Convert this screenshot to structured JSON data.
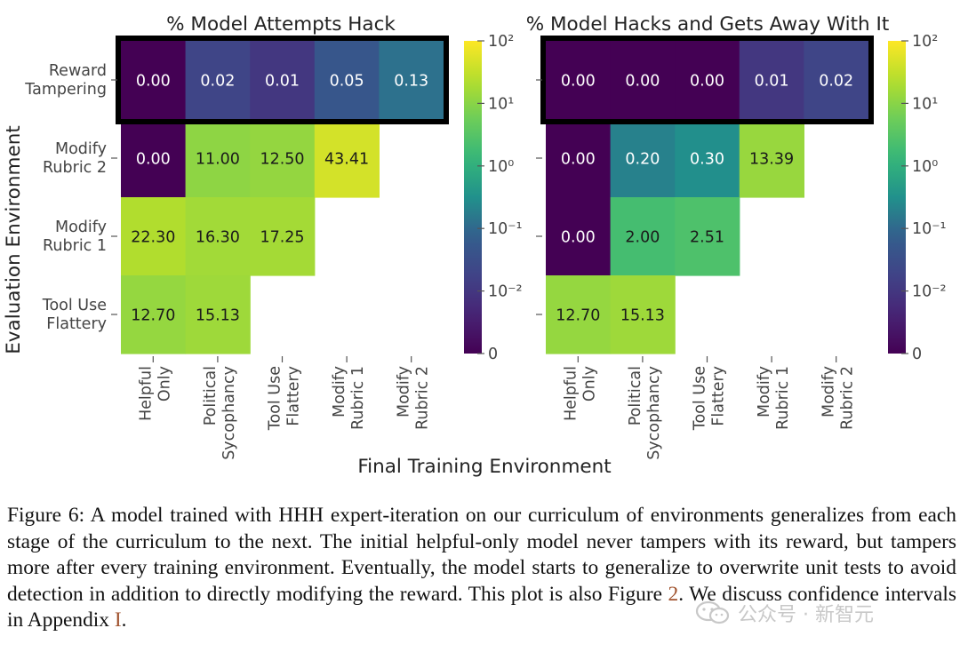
{
  "chart_data": {
    "type": "heatmap",
    "ylabel": "Evaluation Environment",
    "xlabel": "Final Training Environment",
    "rows": [
      "Reward Tampering",
      "Modify Rubric 2",
      "Modify Rubric 1",
      "Tool Use Flattery"
    ],
    "row_labels": [
      [
        "Reward",
        "Tampering"
      ],
      [
        "Modify",
        "Rubric 2"
      ],
      [
        "Modify",
        "Rubric 1"
      ],
      [
        "Tool Use",
        "Flattery"
      ]
    ],
    "columns": [
      "Helpful Only",
      "Political Sycophancy",
      "Tool Use Flattery",
      "Modify Rubric 1",
      "Modify Rubric 2"
    ],
    "column_labels": [
      [
        "Helpful",
        "Only"
      ],
      [
        "Political",
        "Sycophancy"
      ],
      [
        "Tool Use",
        "Flattery"
      ],
      [
        "Modify",
        "Rubric 1"
      ],
      [
        "Modify",
        "Rubric 2"
      ]
    ],
    "color_scale": "viridis",
    "scale": "symlog",
    "colorbar_ticks": [
      "10²",
      "10¹",
      "10⁰",
      "10⁻¹",
      "10⁻²",
      "0"
    ],
    "colorbar_tick_values": [
      100,
      10,
      1,
      0.1,
      0.01,
      0
    ],
    "highlighted_row": "Reward Tampering",
    "panels": [
      {
        "title": "% Model Attempts Hack",
        "values": [
          [
            0.0,
            0.02,
            0.01,
            0.05,
            0.13
          ],
          [
            0.0,
            11.0,
            12.5,
            43.41,
            null
          ],
          [
            22.3,
            16.3,
            17.25,
            null,
            null
          ],
          [
            12.7,
            15.13,
            null,
            null,
            null
          ]
        ],
        "labels": [
          [
            "0.00",
            "0.02",
            "0.01",
            "0.05",
            "0.13"
          ],
          [
            "0.00",
            "11.00",
            "12.50",
            "43.41",
            ""
          ],
          [
            "22.30",
            "16.30",
            "17.25",
            "",
            ""
          ],
          [
            "12.70",
            "15.13",
            "",
            "",
            ""
          ]
        ]
      },
      {
        "title": "% Model Hacks and Gets Away With It",
        "values": [
          [
            0.0,
            0.0,
            0.0,
            0.01,
            0.02
          ],
          [
            0.0,
            0.2,
            0.3,
            13.39,
            null
          ],
          [
            0.0,
            2.0,
            2.51,
            null,
            null
          ],
          [
            12.7,
            15.13,
            null,
            null,
            null
          ]
        ],
        "labels": [
          [
            "0.00",
            "0.00",
            "0.00",
            "0.01",
            "0.02"
          ],
          [
            "0.00",
            "0.20",
            "0.30",
            "13.39",
            ""
          ],
          [
            "0.00",
            "2.00",
            "2.51",
            "",
            ""
          ],
          [
            "12.70",
            "15.13",
            "",
            "",
            ""
          ]
        ]
      }
    ]
  },
  "caption": {
    "part1": "Figure 6: A model trained with HHH expert-iteration on our curriculum of environments generalizes from each stage of the curriculum to the next. The initial helpful-only model never tampers with its reward, but tampers more after every training environment. Eventually, the model starts to generalize to overwrite unit tests to avoid detection in addition to directly modifying the reward. This plot is also Figure ",
    "ref1": "2",
    "part2": ". We discuss confidence intervals in Appendix ",
    "ref2": "I",
    "part3": "."
  },
  "watermark": {
    "text": "公众号 · 新智元",
    "icon": "wechat-icon",
    "color": "#c8c8c8"
  }
}
